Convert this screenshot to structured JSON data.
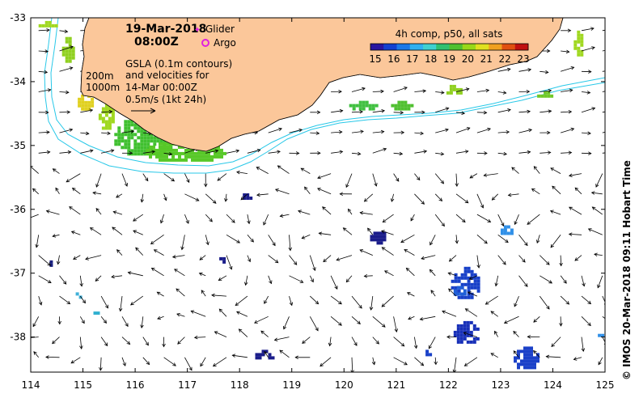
{
  "title": {
    "date": "19-Mar-2018",
    "time": "08:00Z"
  },
  "legend": {
    "glider_label": "Glider",
    "argo_label": "Argo",
    "glider_color": "#e020e0",
    "argo_color": "#e020e0"
  },
  "gsla_note": {
    "line1": "GSLA (0.1m contours)",
    "line2": "and velocities for",
    "line3": "14-Mar 00:00Z",
    "line4": "0.5m/s (1kt 24h)"
  },
  "isobath_labels": {
    "a": "200m",
    "b": "1000m"
  },
  "colorbar": {
    "title": "4h comp, p50, all sats",
    "tick_labels": [
      "15",
      "16",
      "17",
      "18",
      "19",
      "20",
      "21",
      "22",
      "23"
    ],
    "colors": [
      "#2a16a0",
      "#1440d0",
      "#1c78e8",
      "#30b0f0",
      "#40d0d0",
      "#30c070",
      "#50c030",
      "#98d818",
      "#e0e020",
      "#f0a020",
      "#e05010",
      "#c01010"
    ]
  },
  "axes": {
    "x_tick_labels": [
      "114",
      "115",
      "116",
      "117",
      "118",
      "119",
      "120",
      "121",
      "122",
      "123",
      "124",
      "125"
    ],
    "y_tick_labels": [
      "-33",
      "-34",
      "-35",
      "-36",
      "-37",
      "-38"
    ]
  },
  "side_label": "© IMOS 20-Mar-2018 09:11 Hobart Time",
  "map_data": {
    "lon_range": [
      114,
      125
    ],
    "lat_range": [
      -38.55,
      -33
    ],
    "land_color": "#fbc79a",
    "sst_patches": [
      {
        "lon": 115.6,
        "lat": -34.55,
        "w": 1.1,
        "h": 0.6,
        "color": "#40c030"
      },
      {
        "lon": 116.2,
        "lat": -34.9,
        "w": 1.5,
        "h": 0.35,
        "color": "#58c828"
      },
      {
        "lon": 115.3,
        "lat": -34.35,
        "w": 0.3,
        "h": 0.4,
        "color": "#a0d820"
      },
      {
        "lon": 114.9,
        "lat": -34.15,
        "w": 0.25,
        "h": 0.3,
        "color": "#e0d020"
      },
      {
        "lon": 114.15,
        "lat": -33.05,
        "w": 0.35,
        "h": 0.1,
        "color": "#a0d820"
      },
      {
        "lon": 114.6,
        "lat": -33.3,
        "w": 0.2,
        "h": 0.4,
        "color": "#90d020"
      },
      {
        "lon": 120.1,
        "lat": -34.3,
        "w": 0.5,
        "h": 0.12,
        "color": "#40c040"
      },
      {
        "lon": 120.9,
        "lat": -34.3,
        "w": 0.4,
        "h": 0.12,
        "color": "#50c030"
      },
      {
        "lon": 121.9,
        "lat": -34.05,
        "w": 0.35,
        "h": 0.12,
        "color": "#90d020"
      },
      {
        "lon": 123.7,
        "lat": -34.15,
        "w": 0.3,
        "h": 0.1,
        "color": "#70c828"
      },
      {
        "lon": 124.4,
        "lat": -33.2,
        "w": 0.15,
        "h": 0.4,
        "color": "#a0d820"
      },
      {
        "lon": 120.5,
        "lat": -36.3,
        "w": 0.3,
        "h": 0.25,
        "color": "#1a1c8a"
      },
      {
        "lon": 122.05,
        "lat": -36.9,
        "w": 0.5,
        "h": 0.5,
        "color": "#1840c8"
      },
      {
        "lon": 122.1,
        "lat": -37.75,
        "w": 0.45,
        "h": 0.35,
        "color": "#1830b8"
      },
      {
        "lon": 123.25,
        "lat": -38.15,
        "w": 0.45,
        "h": 0.35,
        "color": "#1a40c8"
      },
      {
        "lon": 123.0,
        "lat": -36.25,
        "w": 0.2,
        "h": 0.15,
        "color": "#3090e8"
      },
      {
        "lon": 122.1,
        "lat": -37.2,
        "w": 0.2,
        "h": 0.15,
        "color": "#2060d8"
      },
      {
        "lon": 118.3,
        "lat": -38.2,
        "w": 0.35,
        "h": 0.15,
        "color": "#1a1c8a"
      },
      {
        "lon": 117.55,
        "lat": -36.75,
        "w": 0.2,
        "h": 0.07,
        "color": "#1a1c8a"
      },
      {
        "lon": 118.0,
        "lat": -35.75,
        "w": 0.2,
        "h": 0.07,
        "color": "#1a1c8a"
      },
      {
        "lon": 114.8,
        "lat": -37.3,
        "w": 0.2,
        "h": 0.06,
        "color": "#40b0d8"
      },
      {
        "lon": 115.2,
        "lat": -37.55,
        "w": 0.08,
        "h": 0.08,
        "color": "#30b0d0"
      },
      {
        "lon": 124.8,
        "lat": -37.9,
        "w": 0.15,
        "h": 0.06,
        "color": "#3090e8"
      },
      {
        "lon": 121.5,
        "lat": -38.2,
        "w": 0.15,
        "h": 0.06,
        "color": "#1840c8"
      },
      {
        "lon": 114.3,
        "lat": -36.8,
        "w": 0.1,
        "h": 0.06,
        "color": "#1a2080"
      }
    ]
  }
}
